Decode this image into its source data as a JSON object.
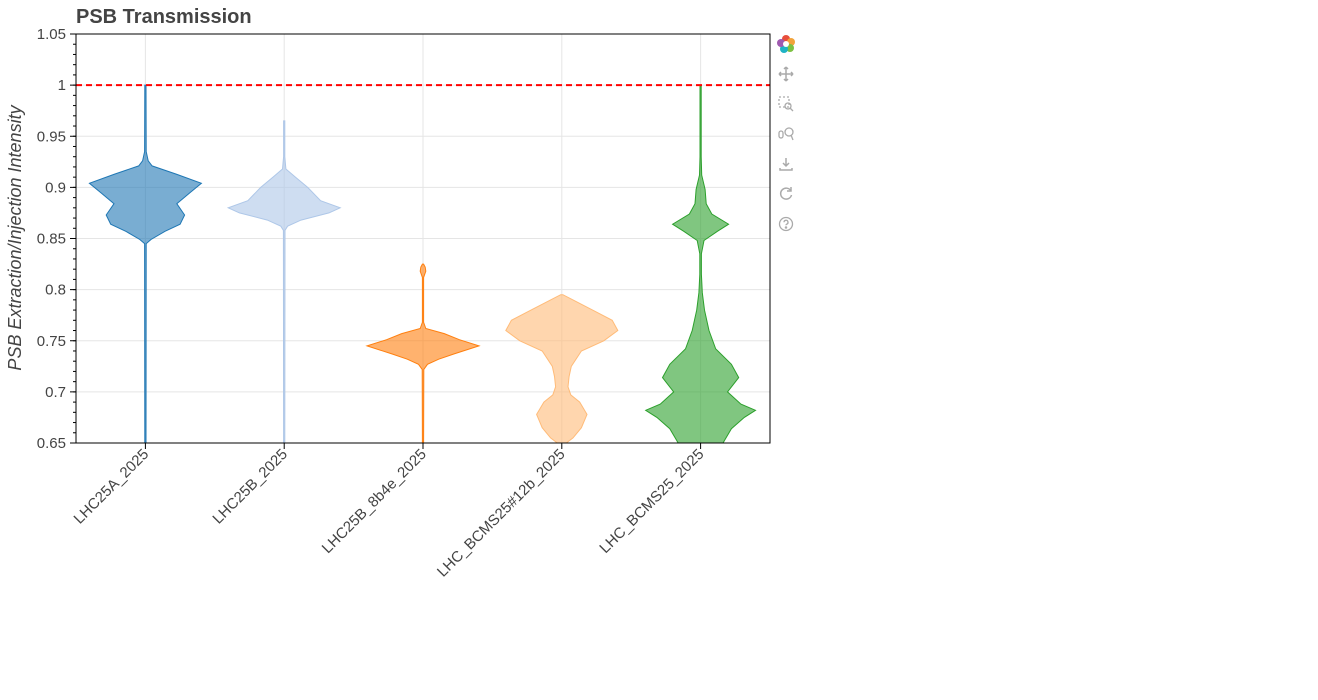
{
  "chart_data": {
    "type": "violin",
    "title": "PSB Transmission",
    "xlabel": "",
    "ylabel": "PSB Extraction/Injection Intensity",
    "ylim": [
      0.65,
      1.05
    ],
    "yticks": [
      0.65,
      0.7,
      0.75,
      0.8,
      0.85,
      0.9,
      0.95,
      1,
      1.05
    ],
    "ytick_labels": [
      "0.65",
      "0.7",
      "0.75",
      "0.8",
      "0.85",
      "0.9",
      "0.95",
      "1",
      "1.05"
    ],
    "categories": [
      "LHC25A_2025",
      "LHC25B_2025",
      "LHC25B_8b4e_2025",
      "LHC_BCMS25#12b_2025",
      "LHC_BCMS25_2025"
    ],
    "reference_line": {
      "y": 1.0,
      "color": "#ff0000",
      "style": "dashed"
    },
    "grid": true,
    "series": [
      {
        "category": "LHC25A_2025",
        "color": "#1f77b4",
        "min": 0.65,
        "max": 1.0,
        "profile": [
          [
            0.65,
            0.01
          ],
          [
            0.845,
            0.015
          ],
          [
            0.849,
            0.1
          ],
          [
            0.857,
            0.35
          ],
          [
            0.864,
            0.62
          ],
          [
            0.873,
            0.7
          ],
          [
            0.884,
            0.56
          ],
          [
            0.895,
            0.8
          ],
          [
            0.904,
            1.0
          ],
          [
            0.913,
            0.55
          ],
          [
            0.921,
            0.12
          ],
          [
            0.926,
            0.05
          ],
          [
            0.935,
            0.015
          ],
          [
            1.0,
            0.01
          ]
        ]
      },
      {
        "category": "LHC25B_2025",
        "color": "#aec7e8",
        "min": 0.65,
        "max": 0.965,
        "profile": [
          [
            0.65,
            0.01
          ],
          [
            0.858,
            0.015
          ],
          [
            0.862,
            0.06
          ],
          [
            0.868,
            0.3
          ],
          [
            0.875,
            0.8
          ],
          [
            0.88,
            1.0
          ],
          [
            0.887,
            0.65
          ],
          [
            0.9,
            0.42
          ],
          [
            0.91,
            0.2
          ],
          [
            0.918,
            0.03
          ],
          [
            0.93,
            0.01
          ],
          [
            0.965,
            0.01
          ]
        ]
      },
      {
        "category": "LHC25B_8b4e_2025",
        "color": "#ff7f0e",
        "min": 0.65,
        "max": 0.825,
        "profile": [
          [
            0.65,
            0.01
          ],
          [
            0.722,
            0.015
          ],
          [
            0.727,
            0.08
          ],
          [
            0.732,
            0.28
          ],
          [
            0.737,
            0.55
          ],
          [
            0.745,
            1.0
          ],
          [
            0.751,
            0.65
          ],
          [
            0.757,
            0.38
          ],
          [
            0.762,
            0.05
          ],
          [
            0.768,
            0.01
          ],
          [
            0.812,
            0.01
          ],
          [
            0.818,
            0.05
          ],
          [
            0.822,
            0.04
          ],
          [
            0.825,
            0.01
          ]
        ]
      },
      {
        "category": "LHC_BCMS25#12b_2025",
        "color": "#ffbb78",
        "min": 0.65,
        "max": 0.795,
        "profile": [
          [
            0.65,
            0.08
          ],
          [
            0.655,
            0.2
          ],
          [
            0.665,
            0.35
          ],
          [
            0.678,
            0.45
          ],
          [
            0.69,
            0.32
          ],
          [
            0.697,
            0.16
          ],
          [
            0.705,
            0.11
          ],
          [
            0.715,
            0.13
          ],
          [
            0.725,
            0.17
          ],
          [
            0.74,
            0.35
          ],
          [
            0.75,
            0.75
          ],
          [
            0.76,
            1.0
          ],
          [
            0.77,
            0.9
          ],
          [
            0.78,
            0.55
          ],
          [
            0.79,
            0.2
          ],
          [
            0.795,
            0.02
          ]
        ]
      },
      {
        "category": "LHC_BCMS25_2025",
        "color": "#2ca02c",
        "min": 0.65,
        "max": 1.0,
        "profile": [
          [
            0.65,
            0.4
          ],
          [
            0.664,
            0.55
          ],
          [
            0.675,
            0.78
          ],
          [
            0.682,
            0.98
          ],
          [
            0.688,
            0.72
          ],
          [
            0.7,
            0.48
          ],
          [
            0.714,
            0.68
          ],
          [
            0.727,
            0.55
          ],
          [
            0.742,
            0.27
          ],
          [
            0.76,
            0.15
          ],
          [
            0.78,
            0.07
          ],
          [
            0.797,
            0.03
          ],
          [
            0.815,
            0.015
          ],
          [
            0.835,
            0.015
          ],
          [
            0.848,
            0.06
          ],
          [
            0.857,
            0.3
          ],
          [
            0.864,
            0.5
          ],
          [
            0.874,
            0.2
          ],
          [
            0.884,
            0.1
          ],
          [
            0.898,
            0.08
          ],
          [
            0.912,
            0.02
          ],
          [
            0.93,
            0.01
          ],
          [
            1.0,
            0.01
          ]
        ]
      }
    ]
  },
  "toolbar": {
    "items": [
      "bokeh-logo-icon",
      "pan-icon",
      "box-zoom-icon",
      "wheel-zoom-icon",
      "save-icon",
      "reset-icon",
      "help-icon"
    ]
  }
}
